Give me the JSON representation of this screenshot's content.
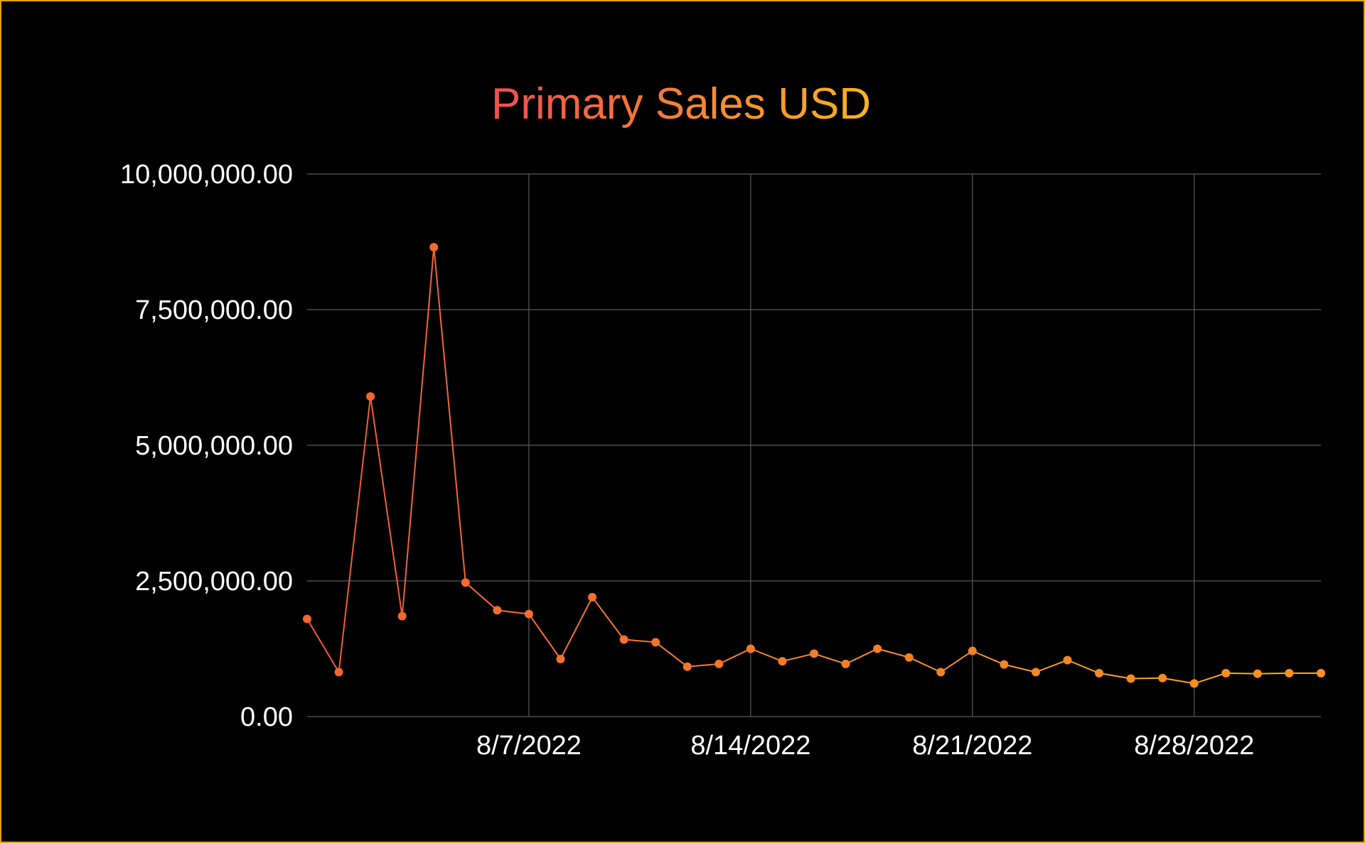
{
  "chart_data": {
    "type": "line",
    "title": "Primary Sales USD",
    "xlabel": "",
    "ylabel": "",
    "x_start": "7/31/2022",
    "x_end": "9/1/2022",
    "xlim": [
      "7/31/2022",
      "9/1/2022"
    ],
    "ylim": [
      0,
      10000000
    ],
    "grid": true,
    "legend": "none",
    "x_ticks": [
      {
        "date": "8/7/2022",
        "label": "8/7/2022"
      },
      {
        "date": "8/14/2022",
        "label": "8/14/2022"
      },
      {
        "date": "8/21/2022",
        "label": "8/21/2022"
      },
      {
        "date": "8/28/2022",
        "label": "8/28/2022"
      }
    ],
    "y_ticks": [
      {
        "value": 0,
        "label": "0.00"
      },
      {
        "value": 2500000,
        "label": "2,500,000.00"
      },
      {
        "value": 5000000,
        "label": "5,000,000.00"
      },
      {
        "value": 7500000,
        "label": "7,500,000.00"
      },
      {
        "value": 10000000,
        "label": "10,000,000.00"
      }
    ],
    "series": [
      {
        "x": [
          "7/31/2022",
          "8/1/2022",
          "8/2/2022",
          "8/3/2022",
          "8/4/2022",
          "8/5/2022",
          "8/6/2022",
          "8/7/2022",
          "8/8/2022",
          "8/9/2022",
          "8/10/2022",
          "8/11/2022",
          "8/12/2022",
          "8/13/2022",
          "8/14/2022",
          "8/15/2022",
          "8/16/2022",
          "8/17/2022",
          "8/18/2022",
          "8/19/2022",
          "8/20/2022",
          "8/21/2022",
          "8/22/2022",
          "8/23/2022",
          "8/24/2022",
          "8/25/2022",
          "8/26/2022",
          "8/27/2022",
          "8/28/2022",
          "8/29/2022",
          "8/30/2022",
          "8/31/2022",
          "9/1/2022"
        ],
        "values": [
          1800000,
          820000,
          5900000,
          1850000,
          8650000,
          2470000,
          1960000,
          1890000,
          1060000,
          2200000,
          1420000,
          1370000,
          920000,
          970000,
          1250000,
          1020000,
          1160000,
          970000,
          1250000,
          1090000,
          820000,
          1210000,
          960000,
          820000,
          1040000,
          800000,
          700000,
          710000,
          610000,
          800000,
          790000,
          800000,
          800000
        ]
      }
    ],
    "colors": {
      "title_gradient_start": "#ef4f4f",
      "title_gradient_end": "#fbb31e",
      "line_start": "#f05a3c",
      "line_end": "#fbb31e",
      "marker_start": "#f26430",
      "marker_end": "#f7931e",
      "grid": "#5a5a5a",
      "background": "#000000",
      "text": "#ffffff",
      "border": "#e0a010"
    }
  }
}
